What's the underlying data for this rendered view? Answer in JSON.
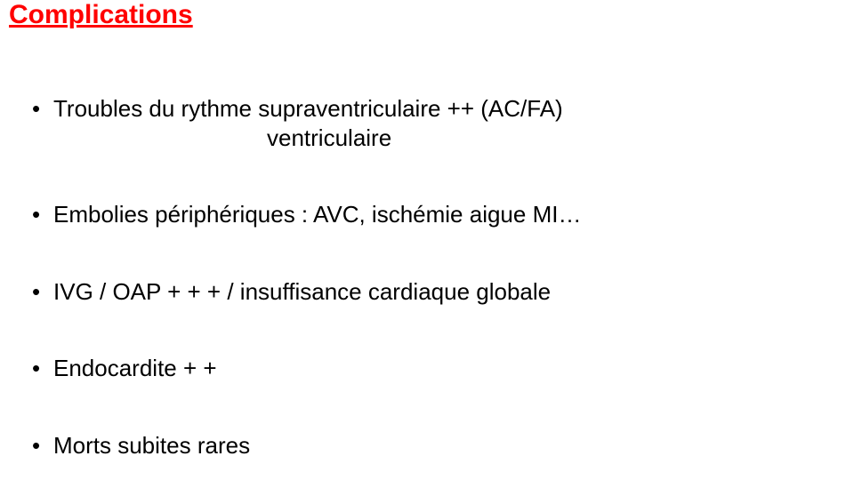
{
  "title": "Complications",
  "items": [
    {
      "text": "Troubles du rythme supraventriculaire ++ (AC/FA)",
      "sub": "ventriculaire"
    },
    {
      "text": " Embolies périphériques : AVC, ischémie aigue MI…"
    },
    {
      "text": "IVG / OAP + + + /  insuffisance cardiaque globale"
    },
    {
      "text": "Endocardite + +"
    },
    {
      "text": "Morts subites rares"
    }
  ]
}
